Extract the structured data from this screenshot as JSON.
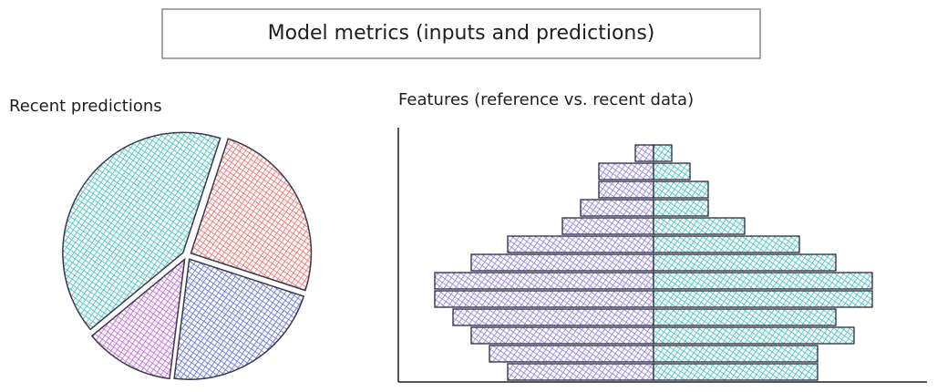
{
  "title": "Model metrics (inputs and predictions)",
  "chart_data": [
    {
      "type": "pie",
      "title": "Recent predictions",
      "values": [
        25,
        22,
        12,
        41
      ],
      "colors": [
        "#f06a6a",
        "#5b6de0",
        "#c45fe0",
        "#3cbfc0"
      ]
    },
    {
      "type": "bar",
      "title": "Features (reference vs. recent data)",
      "series": [
        {
          "color": "#8e7be6",
          "values": [
            1,
            3,
            3,
            4,
            5,
            8,
            10,
            12,
            12,
            11,
            10,
            9,
            8
          ]
        },
        {
          "color": "#3cbfc0",
          "values": [
            1,
            2,
            3,
            3,
            5,
            8,
            10,
            12,
            12,
            10,
            11,
            9,
            9
          ]
        }
      ]
    }
  ]
}
